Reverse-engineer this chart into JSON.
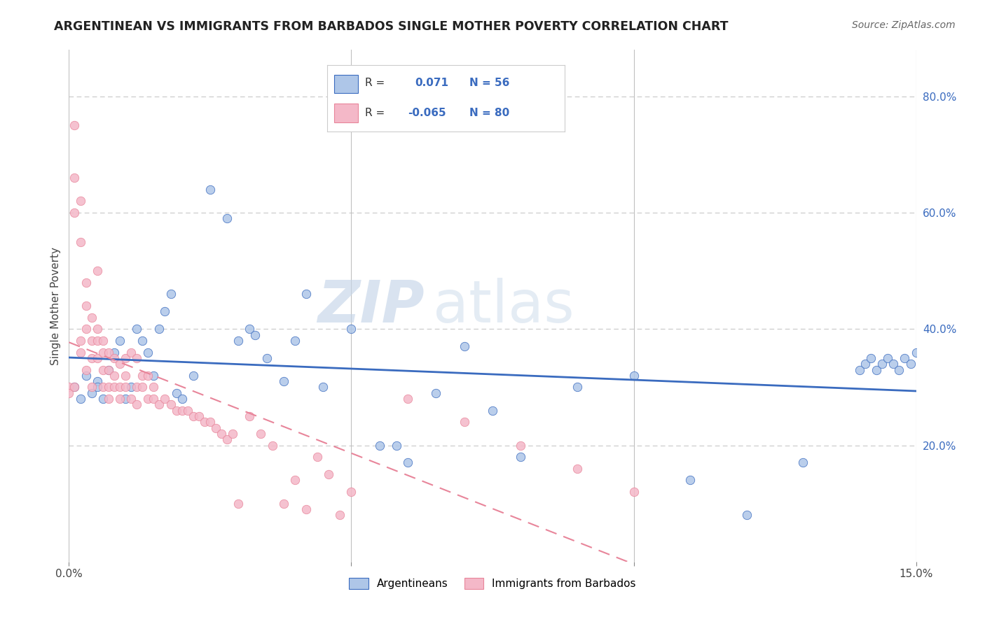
{
  "title": "ARGENTINEAN VS IMMIGRANTS FROM BARBADOS SINGLE MOTHER POVERTY CORRELATION CHART",
  "source": "Source: ZipAtlas.com",
  "ylabel": "Single Mother Poverty",
  "right_yticks": [
    "80.0%",
    "60.0%",
    "40.0%",
    "20.0%"
  ],
  "right_ytick_vals": [
    0.8,
    0.6,
    0.4,
    0.2
  ],
  "xmin": 0.0,
  "xmax": 0.15,
  "ymin": 0.0,
  "ymax": 0.88,
  "legend_labels": [
    "Argentineans",
    "Immigrants from Barbados"
  ],
  "color_blue": "#aec6e8",
  "color_pink": "#f4b8c8",
  "line_blue": "#3a6bbf",
  "line_pink": "#e8859a",
  "watermark_zip": "ZIP",
  "watermark_atlas": "atlas",
  "blue_scatter_x": [
    0.001,
    0.002,
    0.003,
    0.004,
    0.005,
    0.005,
    0.006,
    0.007,
    0.008,
    0.009,
    0.01,
    0.011,
    0.012,
    0.013,
    0.014,
    0.015,
    0.016,
    0.017,
    0.018,
    0.019,
    0.02,
    0.022,
    0.025,
    0.028,
    0.03,
    0.032,
    0.033,
    0.035,
    0.038,
    0.04,
    0.042,
    0.045,
    0.05,
    0.055,
    0.058,
    0.06,
    0.065,
    0.07,
    0.075,
    0.08,
    0.09,
    0.1,
    0.11,
    0.12,
    0.13,
    0.14,
    0.141,
    0.142,
    0.143,
    0.144,
    0.145,
    0.146,
    0.147,
    0.148,
    0.149,
    0.15
  ],
  "blue_scatter_y": [
    0.3,
    0.28,
    0.32,
    0.29,
    0.31,
    0.3,
    0.28,
    0.33,
    0.36,
    0.38,
    0.28,
    0.3,
    0.4,
    0.38,
    0.36,
    0.32,
    0.4,
    0.43,
    0.46,
    0.29,
    0.28,
    0.32,
    0.64,
    0.59,
    0.38,
    0.4,
    0.39,
    0.35,
    0.31,
    0.38,
    0.46,
    0.3,
    0.4,
    0.2,
    0.2,
    0.17,
    0.29,
    0.37,
    0.26,
    0.18,
    0.3,
    0.32,
    0.14,
    0.08,
    0.17,
    0.33,
    0.34,
    0.35,
    0.33,
    0.34,
    0.35,
    0.34,
    0.33,
    0.35,
    0.34,
    0.36
  ],
  "pink_scatter_x": [
    0.0,
    0.0,
    0.001,
    0.001,
    0.001,
    0.001,
    0.002,
    0.002,
    0.002,
    0.002,
    0.003,
    0.003,
    0.003,
    0.003,
    0.004,
    0.004,
    0.004,
    0.004,
    0.005,
    0.005,
    0.005,
    0.005,
    0.006,
    0.006,
    0.006,
    0.006,
    0.007,
    0.007,
    0.007,
    0.007,
    0.008,
    0.008,
    0.008,
    0.009,
    0.009,
    0.009,
    0.01,
    0.01,
    0.01,
    0.011,
    0.011,
    0.012,
    0.012,
    0.012,
    0.013,
    0.013,
    0.014,
    0.014,
    0.015,
    0.015,
    0.016,
    0.017,
    0.018,
    0.019,
    0.02,
    0.021,
    0.022,
    0.023,
    0.024,
    0.025,
    0.026,
    0.027,
    0.028,
    0.029,
    0.03,
    0.032,
    0.034,
    0.036,
    0.038,
    0.04,
    0.042,
    0.044,
    0.046,
    0.048,
    0.05,
    0.06,
    0.07,
    0.08,
    0.09,
    0.1
  ],
  "pink_scatter_y": [
    0.3,
    0.29,
    0.75,
    0.66,
    0.6,
    0.3,
    0.62,
    0.55,
    0.38,
    0.36,
    0.48,
    0.44,
    0.4,
    0.33,
    0.42,
    0.38,
    0.35,
    0.3,
    0.38,
    0.35,
    0.5,
    0.4,
    0.36,
    0.38,
    0.33,
    0.3,
    0.36,
    0.33,
    0.3,
    0.28,
    0.35,
    0.32,
    0.3,
    0.34,
    0.3,
    0.28,
    0.35,
    0.32,
    0.3,
    0.28,
    0.36,
    0.35,
    0.3,
    0.27,
    0.32,
    0.3,
    0.32,
    0.28,
    0.3,
    0.28,
    0.27,
    0.28,
    0.27,
    0.26,
    0.26,
    0.26,
    0.25,
    0.25,
    0.24,
    0.24,
    0.23,
    0.22,
    0.21,
    0.22,
    0.1,
    0.25,
    0.22,
    0.2,
    0.1,
    0.14,
    0.09,
    0.18,
    0.15,
    0.08,
    0.12,
    0.28,
    0.24,
    0.2,
    0.16,
    0.12
  ]
}
